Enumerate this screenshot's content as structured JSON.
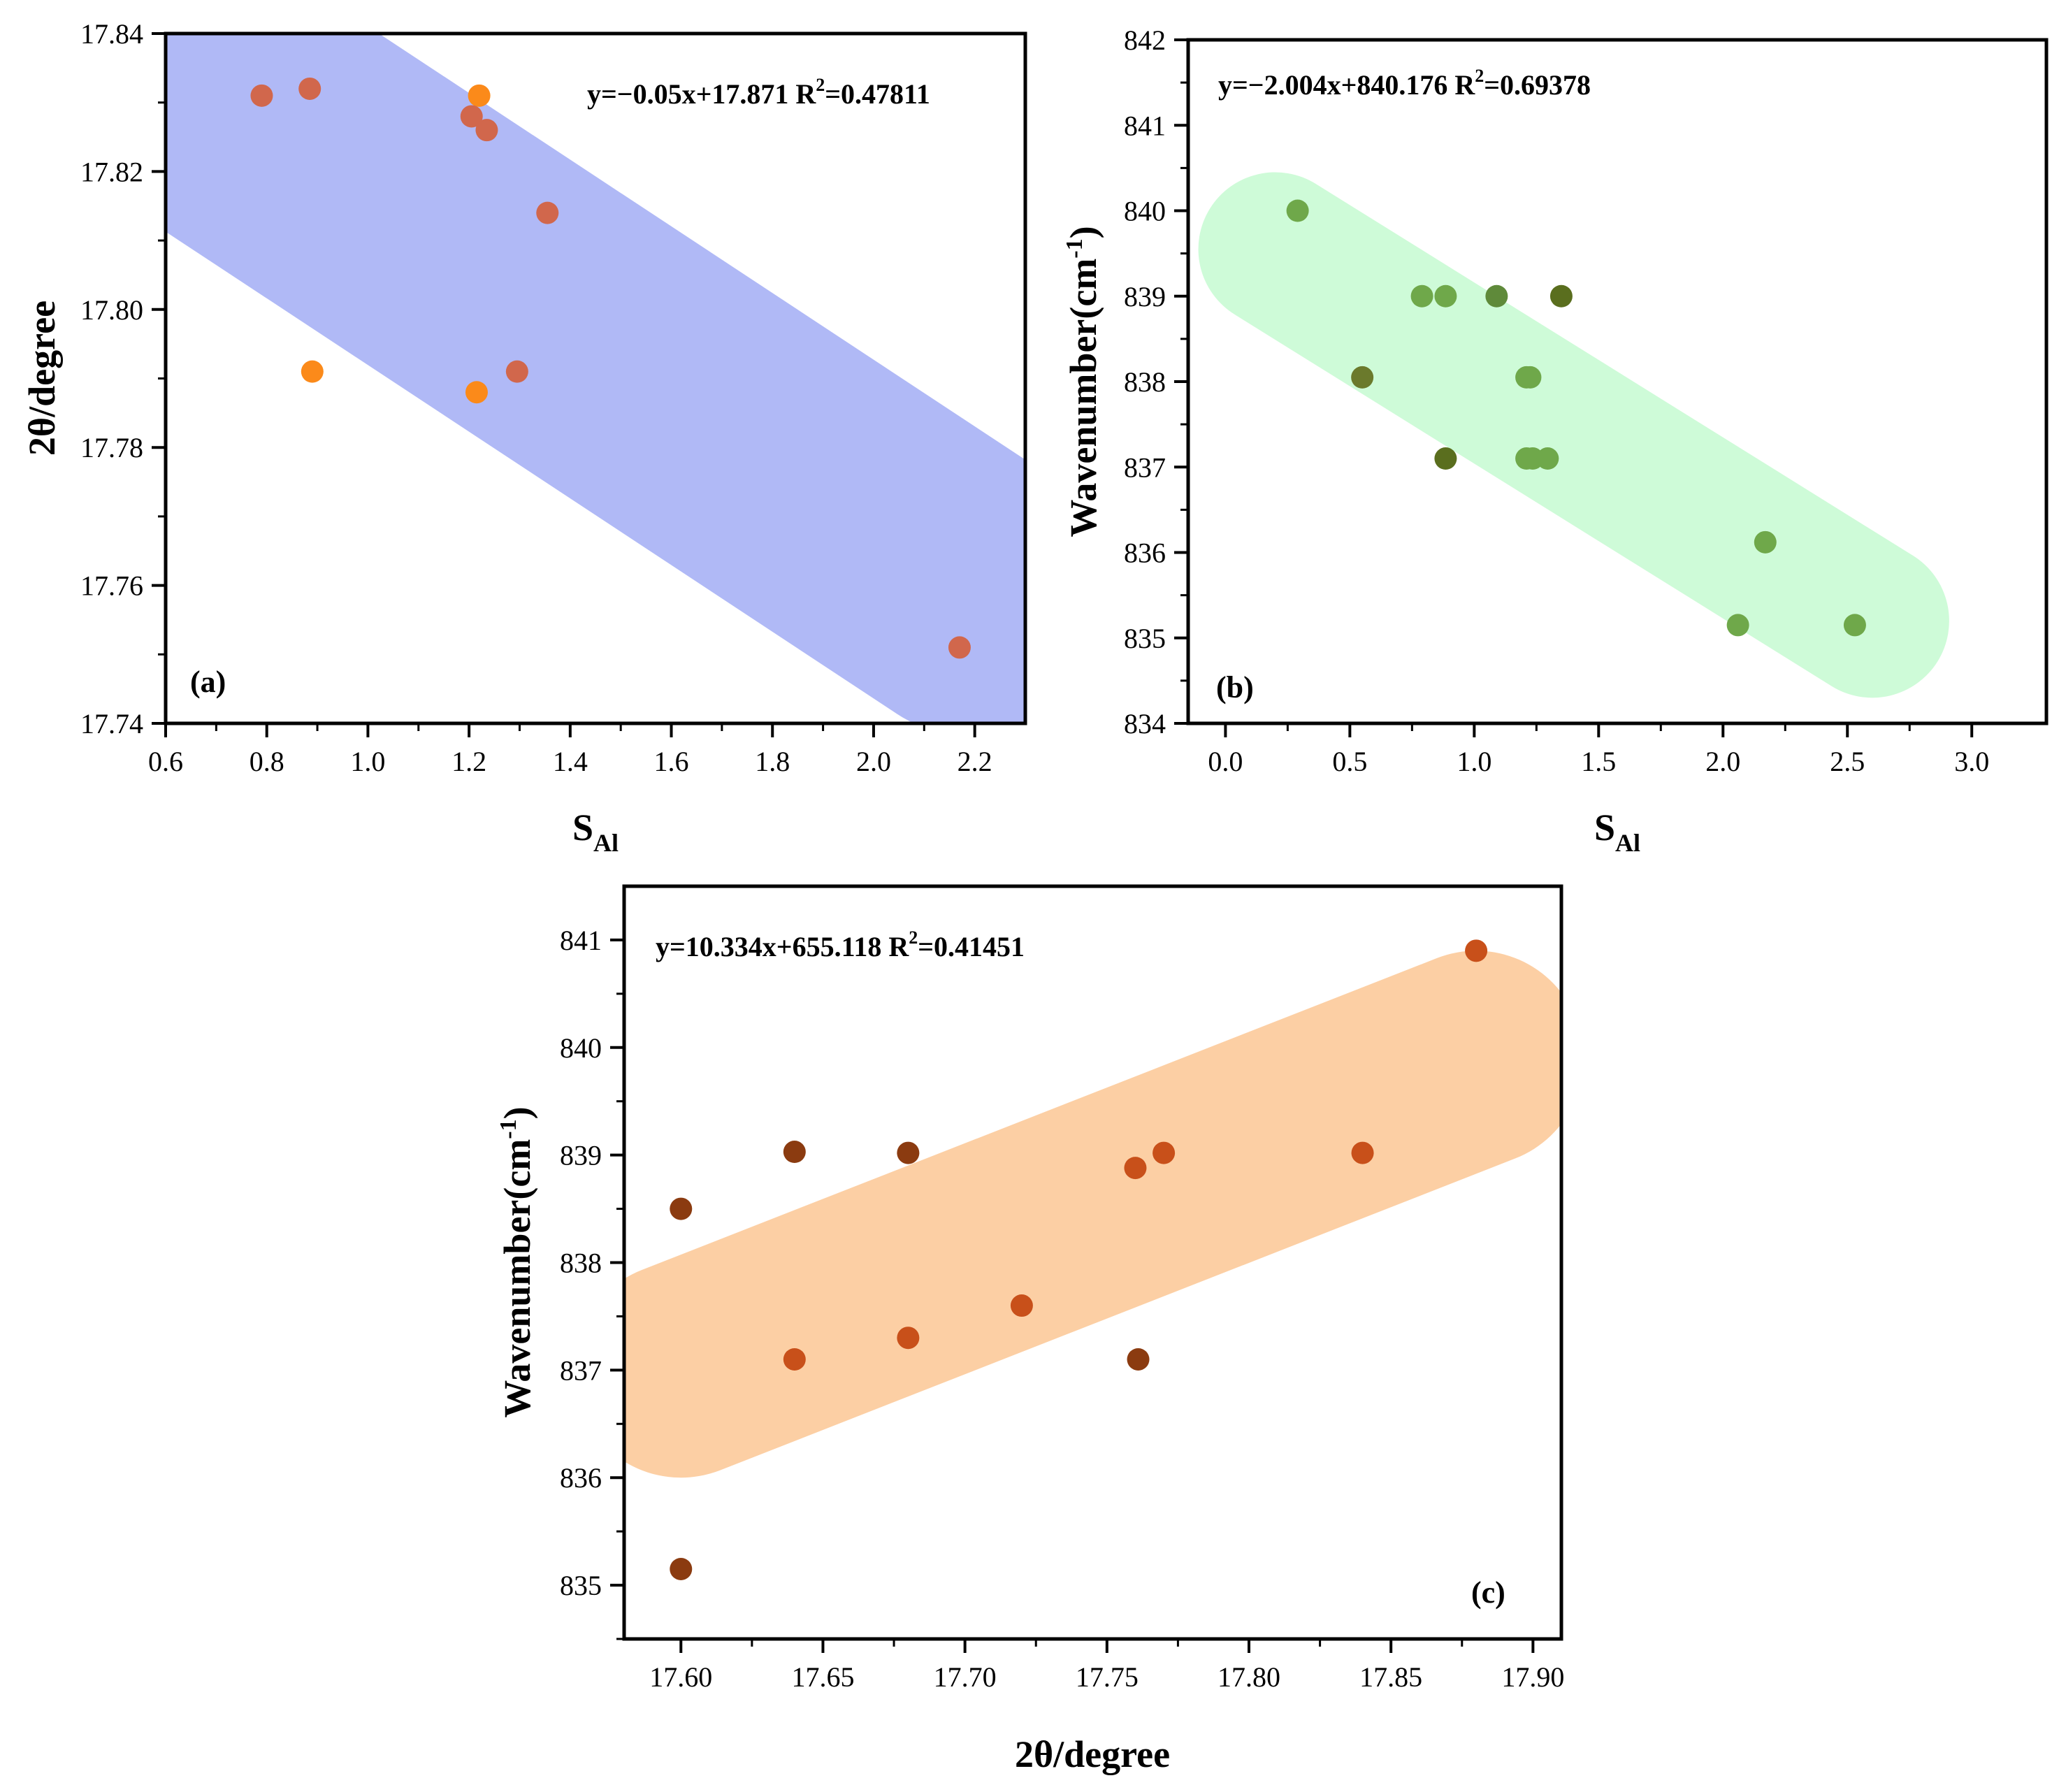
{
  "chart_data": [
    {
      "type": "scatter",
      "panel_label": "(a)",
      "xlabel_main": "S",
      "xlabel_sub": "Al",
      "ylabel": "2θ/degree",
      "xlim": [
        0.6,
        2.3
      ],
      "ylim": [
        17.74,
        17.84
      ],
      "xticks": [
        0.6,
        0.8,
        1.0,
        1.2,
        1.4,
        1.6,
        1.8,
        2.0,
        2.2
      ],
      "xtick_labels": [
        "0.6",
        "0.8",
        "1.0",
        "1.2",
        "1.4",
        "1.6",
        "1.8",
        "2.0",
        "2.2"
      ],
      "yticks": [
        17.74,
        17.76,
        17.78,
        17.8,
        17.82,
        17.84
      ],
      "ytick_labels": [
        "17.74",
        "17.76",
        "17.78",
        "17.80",
        "17.82",
        "17.84"
      ],
      "equation": {
        "pre": "y=−0.05x+17.871   R",
        "sup": "2",
        "post": "=0.47811"
      },
      "band": {
        "x1": 0.7,
        "y1": 17.831,
        "x2": 2.2,
        "y2": 17.7585,
        "half_width": 0.0205,
        "color": "#8e9bf2",
        "opacity": 0.7
      },
      "points": [
        {
          "x": 0.79,
          "y": 17.831,
          "color": "#d1674c"
        },
        {
          "x": 0.885,
          "y": 17.832,
          "color": "#d1674c"
        },
        {
          "x": 1.22,
          "y": 17.831,
          "color": "#fb8a1a"
        },
        {
          "x": 1.205,
          "y": 17.828,
          "color": "#d1674c"
        },
        {
          "x": 1.235,
          "y": 17.826,
          "color": "#d1674c"
        },
        {
          "x": 1.355,
          "y": 17.814,
          "color": "#d1674c"
        },
        {
          "x": 0.89,
          "y": 17.791,
          "color": "#fb8a1a"
        },
        {
          "x": 1.215,
          "y": 17.788,
          "color": "#fb8a1a"
        },
        {
          "x": 1.295,
          "y": 17.791,
          "color": "#d1674c"
        },
        {
          "x": 2.17,
          "y": 17.751,
          "color": "#d1674c"
        }
      ]
    },
    {
      "type": "scatter",
      "panel_label": "(b)",
      "xlabel_main": "S",
      "xlabel_sub": "Al",
      "ylabel": "Wavenumber(cm",
      "ylabel_sup": "-1",
      "ylabel_end": ")",
      "xlim": [
        -0.15,
        3.3
      ],
      "ylim": [
        834,
        842
      ],
      "xticks": [
        0.0,
        0.5,
        1.0,
        1.5,
        2.0,
        2.5,
        3.0
      ],
      "xtick_labels": [
        "0.0",
        "0.5",
        "1.0",
        "1.5",
        "2.0",
        "2.5",
        "3.0"
      ],
      "yticks": [
        834,
        835,
        836,
        837,
        838,
        839,
        840,
        841,
        842
      ],
      "ytick_labels": [
        "834",
        "835",
        "836",
        "837",
        "838",
        "839",
        "840",
        "841",
        "842"
      ],
      "equation": {
        "pre": "y=−2.004x+840.176   R",
        "sup": "2",
        "post": "=0.69378"
      },
      "band": {
        "x1": 0.2,
        "y1": 839.55,
        "x2": 2.6,
        "y2": 835.2,
        "half_width": 0.9,
        "color": "#bdfacb",
        "opacity": 0.75
      },
      "points": [
        {
          "x": 0.29,
          "y": 840.0,
          "color": "#6fa84a"
        },
        {
          "x": 0.79,
          "y": 839.0,
          "color": "#6fa84a"
        },
        {
          "x": 0.885,
          "y": 839.0,
          "color": "#6fa84a"
        },
        {
          "x": 1.09,
          "y": 839.0,
          "color": "#5f8a3a"
        },
        {
          "x": 1.35,
          "y": 839.0,
          "color": "#5a6e1e"
        },
        {
          "x": 0.55,
          "y": 838.05,
          "color": "#6b7a2c"
        },
        {
          "x": 1.21,
          "y": 838.05,
          "color": "#6fa84a"
        },
        {
          "x": 1.225,
          "y": 838.05,
          "color": "#6fa84a"
        },
        {
          "x": 0.885,
          "y": 837.1,
          "color": "#5a6e1e"
        },
        {
          "x": 1.21,
          "y": 837.1,
          "color": "#6fa84a"
        },
        {
          "x": 1.235,
          "y": 837.1,
          "color": "#6fa84a"
        },
        {
          "x": 1.295,
          "y": 837.1,
          "color": "#6fa84a"
        },
        {
          "x": 2.17,
          "y": 836.12,
          "color": "#6fa84a"
        },
        {
          "x": 2.06,
          "y": 835.15,
          "color": "#6fa84a"
        },
        {
          "x": 2.53,
          "y": 835.15,
          "color": "#6fa84a"
        }
      ]
    },
    {
      "type": "scatter",
      "panel_label": "(c)",
      "xlabel_main": "2θ/degree",
      "ylabel": "Wavenumber(cm",
      "ylabel_sup": "-1",
      "ylabel_end": ")",
      "xlim": [
        17.58,
        17.91
      ],
      "ylim": [
        834.5,
        841.5
      ],
      "xticks": [
        17.6,
        17.65,
        17.7,
        17.75,
        17.8,
        17.85,
        17.9
      ],
      "xtick_labels": [
        "17.60",
        "17.65",
        "17.70",
        "17.75",
        "17.80",
        "17.85",
        "17.90"
      ],
      "yticks": [
        835,
        836,
        837,
        838,
        839,
        840,
        841
      ],
      "ytick_labels": [
        "835",
        "836",
        "837",
        "838",
        "839",
        "840",
        "841"
      ],
      "equation": {
        "pre": "y=10.334x+655.118   R",
        "sup": "2",
        "post": "=0.41451"
      },
      "band": {
        "x1": 17.6,
        "y1": 837.0,
        "x2": 17.88,
        "y2": 839.9,
        "half_width": 1.0,
        "color": "#fbc28a",
        "opacity": 0.78
      },
      "points": [
        {
          "x": 17.88,
          "y": 840.9,
          "color": "#c8501a"
        },
        {
          "x": 17.64,
          "y": 839.03,
          "color": "#8b3b10"
        },
        {
          "x": 17.68,
          "y": 839.02,
          "color": "#8b3b10"
        },
        {
          "x": 17.76,
          "y": 838.88,
          "color": "#c8501a"
        },
        {
          "x": 17.77,
          "y": 839.02,
          "color": "#c8501a"
        },
        {
          "x": 17.84,
          "y": 839.02,
          "color": "#c8501a"
        },
        {
          "x": 17.6,
          "y": 838.5,
          "color": "#8b3b10"
        },
        {
          "x": 17.72,
          "y": 837.6,
          "color": "#c8501a"
        },
        {
          "x": 17.68,
          "y": 837.3,
          "color": "#c8501a"
        },
        {
          "x": 17.64,
          "y": 837.1,
          "color": "#c8501a"
        },
        {
          "x": 17.761,
          "y": 837.1,
          "color": "#8b3b10"
        },
        {
          "x": 17.6,
          "y": 835.15,
          "color": "#8b3b10"
        }
      ]
    }
  ]
}
